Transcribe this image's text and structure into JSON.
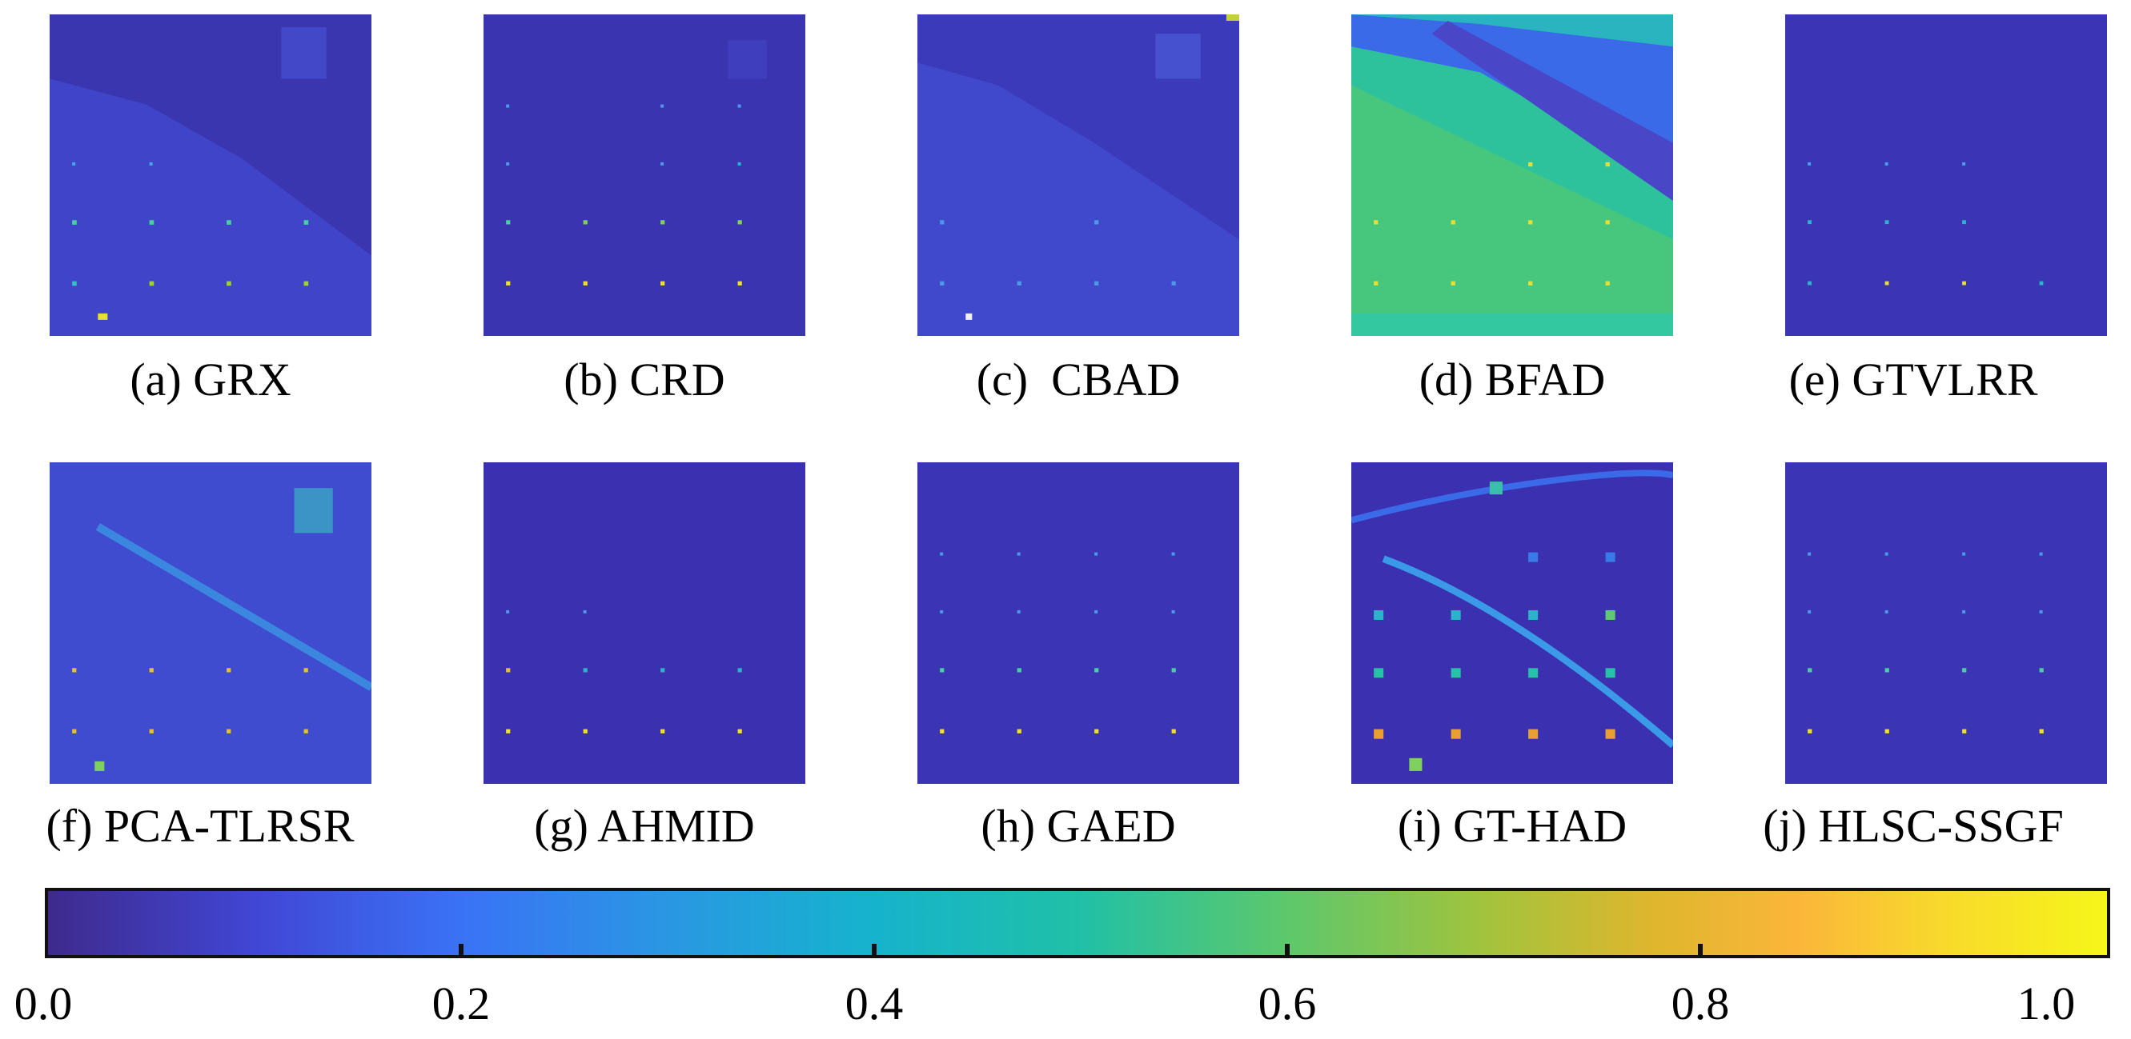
{
  "panels": [
    {
      "id": "a",
      "caption": "(a) GRX"
    },
    {
      "id": "b",
      "caption": "(b) CRD"
    },
    {
      "id": "c",
      "caption": "(c)  CBAD"
    },
    {
      "id": "d",
      "caption": "(d) BFAD"
    },
    {
      "id": "e",
      "caption": "(e) GTVLRR"
    },
    {
      "id": "f",
      "caption": "(f) PCA-TLRSR"
    },
    {
      "id": "g",
      "caption": "(g) AHMID"
    },
    {
      "id": "h",
      "caption": "(h) GAED"
    },
    {
      "id": "i",
      "caption": "(i) GT-HAD"
    },
    {
      "id": "j",
      "caption": "(j) HLSC-SSGF"
    }
  ],
  "colorbar": {
    "ticks": [
      "0.0",
      "0.2",
      "0.4",
      "0.6",
      "0.8",
      "1.0"
    ],
    "colors": {
      "low": "#3e2a8c",
      "mid": "#16b3cd",
      "high": "#f6f619"
    }
  }
}
